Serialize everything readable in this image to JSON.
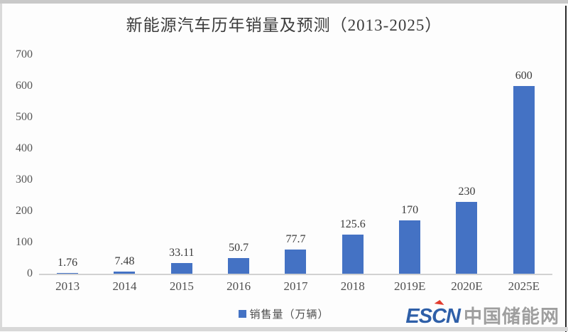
{
  "page": {
    "title": "新能源汽车历年销量及预测（2013-2025）"
  },
  "chart_data": {
    "type": "bar",
    "title": "新能源汽车历年销量及预测（2013-2025）",
    "categories": [
      "2013",
      "2014",
      "2015",
      "2016",
      "2017",
      "2018",
      "2019E",
      "2020E",
      "2025E"
    ],
    "values": [
      1.76,
      7.48,
      33.11,
      50.7,
      77.7,
      125.6,
      170,
      230,
      600
    ],
    "value_labels": [
      "1.76",
      "7.48",
      "33.11",
      "50.7",
      "77.7",
      "125.6",
      "170",
      "230",
      "600"
    ],
    "xlabel": "",
    "ylabel": "",
    "ylim": [
      0,
      700
    ],
    "y_ticks": [
      0,
      100,
      200,
      300,
      400,
      500,
      600,
      700
    ],
    "grid": false,
    "bar_color": "#4472C4",
    "legend": {
      "label": "销售量（万辆）",
      "position": "bottom",
      "swatch_color": "#4472C4"
    }
  },
  "watermark": {
    "escn": "ESCN",
    "site_name": "中国储能网",
    "escn_color": "#2e5fa8",
    "accent_color": "#e23b2e",
    "site_name_color": "#9e9e9e"
  }
}
